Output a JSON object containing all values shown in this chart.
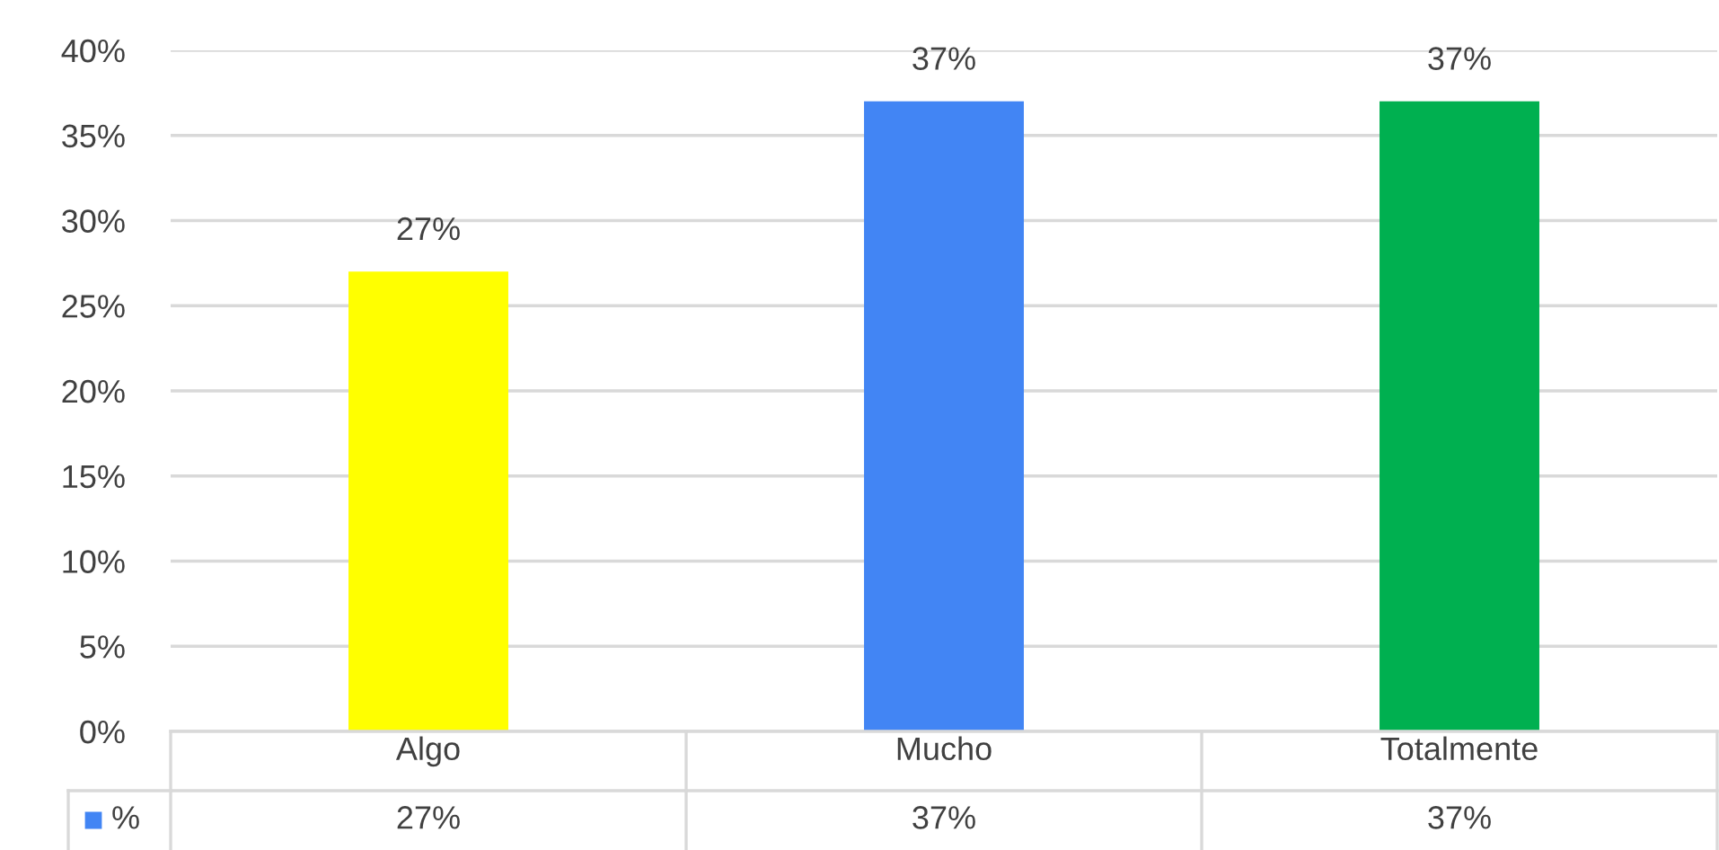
{
  "chart_data": {
    "type": "bar",
    "categories": [
      "Algo",
      "Mucho",
      "Totalmente"
    ],
    "series": [
      {
        "name": "%",
        "color": "#4285f4",
        "colors": [
          "#ffff00",
          "#4285f4",
          "#00b050"
        ],
        "values": [
          27,
          37,
          37
        ],
        "value_labels": [
          "27%",
          "37%",
          "37%"
        ]
      }
    ],
    "ylim": [
      0,
      40
    ],
    "yticks": [
      {
        "value": 0,
        "label": "0%"
      },
      {
        "value": 5,
        "label": "5%"
      },
      {
        "value": 10,
        "label": "10%"
      },
      {
        "value": 15,
        "label": "15%"
      },
      {
        "value": 20,
        "label": "20%"
      },
      {
        "value": 25,
        "label": "25%"
      },
      {
        "value": 30,
        "label": "30%"
      },
      {
        "value": 35,
        "label": "35%"
      },
      {
        "value": 40,
        "label": "40%"
      }
    ],
    "grid": "y",
    "legend": "bottom"
  }
}
